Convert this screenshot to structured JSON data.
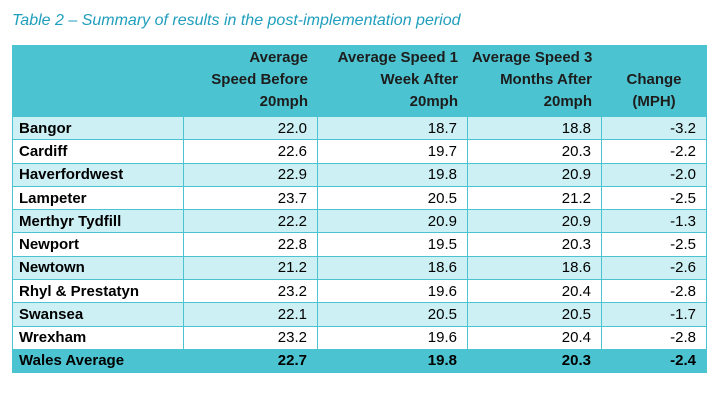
{
  "caption": "Table 2 – Summary of results in the post-implementation period",
  "table": {
    "headers": [
      {
        "lines": []
      },
      {
        "lines": [
          "Average",
          "Speed Before",
          "20mph"
        ]
      },
      {
        "lines": [
          "Average Speed  1",
          "Week After",
          "20mph"
        ]
      },
      {
        "lines": [
          "Average Speed 3",
          "Months After",
          "20mph"
        ]
      },
      {
        "lines": [
          "Change",
          "(MPH)"
        ]
      }
    ],
    "rows": [
      {
        "location": "Bangor",
        "before": "22.0",
        "week_after": "18.7",
        "months_after": "18.8",
        "change": "-3.2"
      },
      {
        "location": "Cardiff",
        "before": "22.6",
        "week_after": "19.7",
        "months_after": "20.3",
        "change": "-2.2"
      },
      {
        "location": "Haverfordwest",
        "before": "22.9",
        "week_after": "19.8",
        "months_after": "20.9",
        "change": "-2.0"
      },
      {
        "location": "Lampeter",
        "before": "23.7",
        "week_after": "20.5",
        "months_after": "21.2",
        "change": "-2.5"
      },
      {
        "location": "Merthyr Tydfill",
        "before": "22.2",
        "week_after": "20.9",
        "months_after": "20.9",
        "change": "-1.3"
      },
      {
        "location": "Newport",
        "before": "22.8",
        "week_after": "19.5",
        "months_after": "20.3",
        "change": "-2.5"
      },
      {
        "location": "Newtown",
        "before": "21.2",
        "week_after": "18.6",
        "months_after": "18.6",
        "change": "-2.6"
      },
      {
        "location": "Rhyl & Prestatyn",
        "before": "23.2",
        "week_after": "19.6",
        "months_after": "20.4",
        "change": "-2.8"
      },
      {
        "location": "Swansea",
        "before": "22.1",
        "week_after": "20.5",
        "months_after": "20.5",
        "change": "-1.7"
      },
      {
        "location": "Wrexham",
        "before": "23.2",
        "week_after": "19.6",
        "months_after": "20.4",
        "change": "-2.8"
      }
    ],
    "average": {
      "location": "Wales Average",
      "before": "22.7",
      "week_after": "19.8",
      "months_after": "20.3",
      "change": "-2.4"
    }
  },
  "colors": {
    "caption": "#1f9ebd",
    "header_fill": "#4cc3d0",
    "band_fill": "#cdf0f4",
    "row_fill": "#ffffff"
  }
}
